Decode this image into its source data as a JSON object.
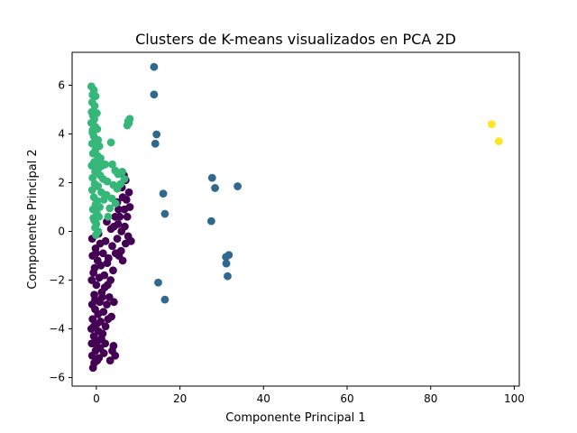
{
  "chart_data": {
    "type": "scatter",
    "title": "Clusters de K-means visualizados en PCA 2D",
    "xlabel": "Componente Principal 1",
    "ylabel": "Componente Principal 2",
    "xlim": [
      -5.8,
      101.2
    ],
    "ylim": [
      -6.35,
      7.35
    ],
    "xticks": [
      0,
      20,
      40,
      60,
      80,
      100
    ],
    "yticks": [
      -6,
      -4,
      -2,
      0,
      2,
      4,
      6
    ],
    "grid": false,
    "colors": [
      "#440154",
      "#31688e",
      "#35b779",
      "#fde725"
    ],
    "series": [
      {
        "color": "#440154",
        "points": [
          [
            -0.8,
            -5.6
          ],
          [
            -0.5,
            -5.4
          ],
          [
            0.2,
            -5.3
          ],
          [
            -1.0,
            -5.1
          ],
          [
            0.6,
            -5.2
          ],
          [
            -0.2,
            -4.9
          ],
          [
            0.9,
            -4.8
          ],
          [
            -1.1,
            -4.6
          ],
          [
            0.3,
            -4.5
          ],
          [
            1.2,
            -4.4
          ],
          [
            3.8,
            -4.9
          ],
          [
            4.5,
            -5.1
          ],
          [
            3.3,
            -5.3
          ],
          [
            4.1,
            -4.7
          ],
          [
            -0.6,
            -4.3
          ],
          [
            0.5,
            -4.1
          ],
          [
            1.5,
            -4.2
          ],
          [
            -1.2,
            -4.0
          ],
          [
            2.2,
            -3.9
          ],
          [
            0.1,
            -3.8
          ],
          [
            -0.9,
            -3.6
          ],
          [
            1.0,
            -3.7
          ],
          [
            2.8,
            -3.6
          ],
          [
            0.4,
            -3.4
          ],
          [
            -0.3,
            -3.2
          ],
          [
            1.7,
            -3.3
          ],
          [
            3.6,
            -3.5
          ],
          [
            -1.0,
            -3.0
          ],
          [
            0.8,
            -2.9
          ],
          [
            2.5,
            -3.0
          ],
          [
            3.1,
            -2.7
          ],
          [
            4.2,
            -2.9
          ],
          [
            -0.5,
            -2.6
          ],
          [
            1.3,
            -2.5
          ],
          [
            2.0,
            -2.3
          ],
          [
            0.0,
            -2.2
          ],
          [
            -1.1,
            -2.0
          ],
          [
            0.7,
            -1.9
          ],
          [
            1.9,
            -1.8
          ],
          [
            3.4,
            -2.0
          ],
          [
            4.0,
            -1.6
          ],
          [
            -0.4,
            -1.5
          ],
          [
            1.1,
            -1.4
          ],
          [
            2.6,
            -1.3
          ],
          [
            0.3,
            -1.2
          ],
          [
            -0.9,
            -1.0
          ],
          [
            1.6,
            -0.9
          ],
          [
            2.9,
            -1.1
          ],
          [
            4.6,
            -0.9
          ],
          [
            3.8,
            -0.6
          ],
          [
            -0.2,
            -0.7
          ],
          [
            0.9,
            -0.5
          ],
          [
            2.2,
            -0.4
          ],
          [
            -1.0,
            -0.3
          ],
          [
            5.4,
            -1.0
          ],
          [
            5.9,
            -0.8
          ],
          [
            6.3,
            -1.2
          ],
          [
            7.0,
            -0.5
          ],
          [
            7.6,
            -0.2
          ],
          [
            8.3,
            -0.4
          ],
          [
            5.0,
            -0.3
          ],
          [
            6.0,
            0.0
          ],
          [
            4.2,
            0.2
          ],
          [
            5.2,
            0.3
          ],
          [
            6.8,
            0.2
          ],
          [
            2.5,
            0.4
          ],
          [
            3.5,
            0.1
          ],
          [
            5.6,
            0.6
          ],
          [
            6.7,
            0.9
          ],
          [
            7.4,
            0.6
          ],
          [
            8.0,
            1.0
          ],
          [
            7.2,
            1.3
          ],
          [
            6.3,
            1.4
          ],
          [
            5.0,
            1.2
          ],
          [
            6.1,
            1.8
          ],
          [
            7.0,
            2.1
          ],
          [
            6.6,
            2.3
          ],
          [
            7.8,
            1.6
          ],
          [
            5.3,
            0.9
          ],
          [
            4.5,
            0.6
          ],
          [
            -0.6,
            -3.9
          ],
          [
            -0.3,
            -2.8
          ],
          [
            -0.7,
            -1.7
          ],
          [
            -0.1,
            -0.9
          ],
          [
            0.5,
            -0.1
          ],
          [
            1.4,
            -2.7
          ],
          [
            2.1,
            -4.6
          ],
          [
            1.8,
            -5.0
          ],
          [
            0.1,
            -4.7
          ],
          [
            2.7,
            -2.2
          ]
        ]
      },
      {
        "color": "#31688e",
        "points": [
          [
            13.8,
            6.75
          ],
          [
            13.8,
            5.62
          ],
          [
            14.4,
            3.98
          ],
          [
            14.1,
            3.6
          ],
          [
            16.0,
            1.55
          ],
          [
            16.4,
            0.72
          ],
          [
            27.7,
            2.2
          ],
          [
            28.4,
            1.78
          ],
          [
            33.8,
            1.85
          ],
          [
            27.5,
            0.42
          ],
          [
            31.7,
            -0.97
          ],
          [
            31.0,
            -1.05
          ],
          [
            31.1,
            -1.32
          ],
          [
            31.4,
            -1.84
          ],
          [
            14.8,
            -2.1
          ],
          [
            16.4,
            -2.8
          ]
        ]
      },
      {
        "color": "#35b779",
        "points": [
          [
            -1.2,
            5.95
          ],
          [
            -0.6,
            5.8
          ],
          [
            -0.9,
            5.6
          ],
          [
            -0.2,
            5.55
          ],
          [
            -1.0,
            5.3
          ],
          [
            -0.4,
            5.15
          ],
          [
            -1.1,
            4.9
          ],
          [
            0.1,
            4.85
          ],
          [
            -0.8,
            4.75
          ],
          [
            -0.5,
            4.6
          ],
          [
            -1.2,
            4.45
          ],
          [
            -0.3,
            4.3
          ],
          [
            0.2,
            4.2
          ],
          [
            -0.9,
            4.05
          ],
          [
            -0.6,
            3.9
          ],
          [
            0.4,
            3.75
          ],
          [
            -1.0,
            3.6
          ],
          [
            0.7,
            3.5
          ],
          [
            -0.2,
            3.35
          ],
          [
            -0.8,
            3.2
          ],
          [
            0.3,
            3.1
          ],
          [
            1.0,
            3.0
          ],
          [
            -0.5,
            2.85
          ],
          [
            -1.1,
            2.7
          ],
          [
            0.6,
            2.6
          ],
          [
            1.4,
            2.7
          ],
          [
            2.1,
            2.75
          ],
          [
            -0.3,
            2.45
          ],
          [
            0.9,
            2.3
          ],
          [
            -0.9,
            2.2
          ],
          [
            1.6,
            2.15
          ],
          [
            2.6,
            2.05
          ],
          [
            -0.4,
            1.95
          ],
          [
            0.4,
            1.85
          ],
          [
            -1.0,
            1.7
          ],
          [
            1.2,
            1.6
          ],
          [
            2.4,
            1.5
          ],
          [
            -0.6,
            1.4
          ],
          [
            0.2,
            1.25
          ],
          [
            -0.2,
            1.1
          ],
          [
            0.8,
            1.0
          ],
          [
            -0.8,
            0.9
          ],
          [
            0.1,
            0.75
          ],
          [
            0.6,
            0.6
          ],
          [
            -0.5,
            0.45
          ],
          [
            0.0,
            0.3
          ],
          [
            -0.3,
            0.15
          ],
          [
            0.4,
            0.0
          ],
          [
            -0.1,
            -0.15
          ],
          [
            3.8,
            2.75
          ],
          [
            4.5,
            2.5
          ],
          [
            5.2,
            2.35
          ],
          [
            6.2,
            2.45
          ],
          [
            6.7,
            2.15
          ],
          [
            4.1,
            1.9
          ],
          [
            5.0,
            1.75
          ],
          [
            5.8,
            1.95
          ],
          [
            3.7,
            1.35
          ],
          [
            4.6,
            1.15
          ],
          [
            3.2,
            0.95
          ],
          [
            2.8,
            0.6
          ],
          [
            3.5,
            3.65
          ],
          [
            7.4,
            4.35
          ],
          [
            7.8,
            4.45
          ],
          [
            8.0,
            4.62
          ],
          [
            7.6,
            4.52
          ],
          [
            -0.9,
            4.15
          ],
          [
            0.5,
            2.9
          ],
          [
            -0.7,
            0.55
          ],
          [
            1.8,
            1.3
          ]
        ]
      },
      {
        "color": "#fde725",
        "points": [
          [
            94.6,
            4.4
          ],
          [
            96.3,
            3.7
          ]
        ]
      }
    ]
  }
}
